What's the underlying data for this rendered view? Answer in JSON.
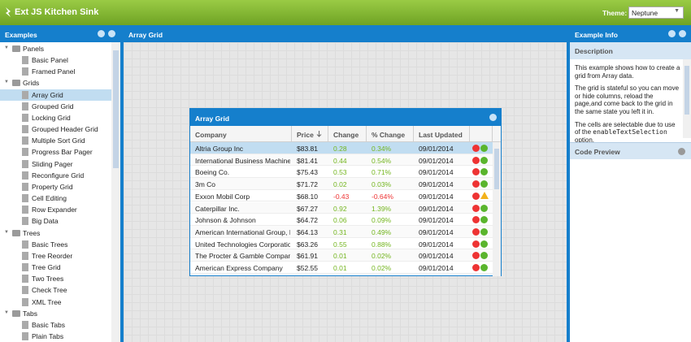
{
  "header": {
    "title": "Ext JS Kitchen Sink",
    "theme_label": "Theme:",
    "theme_value": "Neptune"
  },
  "examples": {
    "title": "Examples",
    "groups": [
      {
        "label": "Panels",
        "children": [
          "Basic Panel",
          "Framed Panel"
        ]
      },
      {
        "label": "Grids",
        "children": [
          "Array Grid",
          "Grouped Grid",
          "Locking Grid",
          "Grouped Header Grid",
          "Multiple Sort Grid",
          "Progress Bar Pager",
          "Sliding Pager",
          "Reconfigure Grid",
          "Property Grid",
          "Cell Editing",
          "Row Expander",
          "Big Data"
        ]
      },
      {
        "label": "Trees",
        "children": [
          "Basic Trees",
          "Tree Reorder",
          "Tree Grid",
          "Two Trees",
          "Check Tree",
          "XML Tree"
        ]
      },
      {
        "label": "Tabs",
        "children": [
          "Basic Tabs",
          "Plain Tabs"
        ]
      }
    ]
  },
  "center": {
    "title": "Array Grid"
  },
  "grid": {
    "title": "Array Grid",
    "columns": [
      "Company",
      "Price",
      "Change",
      "% Change",
      "Last Updated"
    ],
    "rows": [
      [
        "Altria Group Inc",
        "$83.81",
        "0.28",
        "0.34%",
        "09/01/2014"
      ],
      [
        "International Business Machines",
        "$81.41",
        "0.44",
        "0.54%",
        "09/01/2014"
      ],
      [
        "Boeing Co.",
        "$75.43",
        "0.53",
        "0.71%",
        "09/01/2014"
      ],
      [
        "3m Co",
        "$71.72",
        "0.02",
        "0.03%",
        "09/01/2014"
      ],
      [
        "Exxon Mobil Corp",
        "$68.10",
        "-0.43",
        "-0.64%",
        "09/01/2014"
      ],
      [
        "Caterpillar Inc.",
        "$67.27",
        "0.92",
        "1.39%",
        "09/01/2014"
      ],
      [
        "Johnson & Johnson",
        "$64.72",
        "0.06",
        "0.09%",
        "09/01/2014"
      ],
      [
        "American International Group, I...",
        "$64.13",
        "0.31",
        "0.49%",
        "09/01/2014"
      ],
      [
        "United Technologies Corporation",
        "$63.26",
        "0.55",
        "0.88%",
        "09/01/2014"
      ],
      [
        "The Procter & Gamble Company",
        "$61.91",
        "0.01",
        "0.02%",
        "09/01/2014"
      ],
      [
        "American Express Company",
        "$52.55",
        "0.01",
        "0.02%",
        "09/01/2014"
      ]
    ]
  },
  "info": {
    "title": "Example Info",
    "description_title": "Description",
    "paragraphs": [
      "This example shows how to create a grid from Array data.",
      "The grid is stateful so you can move or hide columns, reload the page,and come back to the grid in the same state you left it in.",
      {
        "before": "The cells are selectable due to use of the ",
        "code": "enableTextSelection",
        "after": " option."
      }
    ],
    "code_preview": "Code Preview"
  }
}
